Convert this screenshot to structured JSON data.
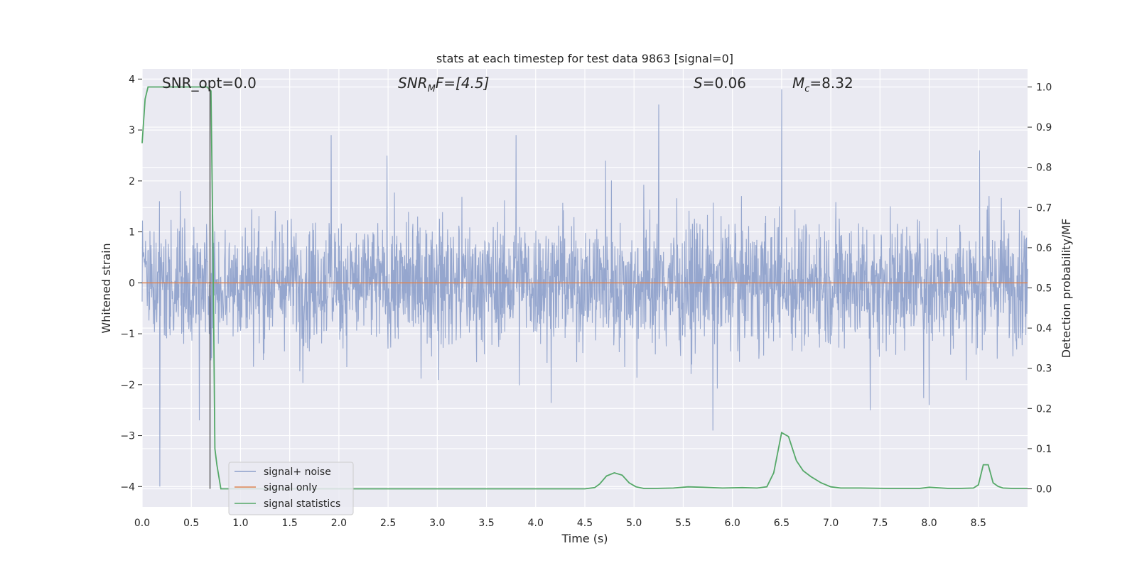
{
  "chart_data": {
    "type": "line",
    "title": "stats at each timestep for test data 9863 [signal=0]",
    "xlabel": "Time (s)",
    "ylabel_left": "Whitened strain",
    "ylabel_right": "Detection probability/MF",
    "xlim": [
      0,
      9.0
    ],
    "ylim_left": [
      -4.4,
      4.2
    ],
    "ylim_right": [
      -0.045,
      1.045
    ],
    "x_ticks": [
      "0.0",
      "0.5",
      "1.0",
      "1.5",
      "2.0",
      "2.5",
      "3.0",
      "3.5",
      "4.0",
      "4.5",
      "5.0",
      "5.5",
      "6.0",
      "6.5",
      "7.0",
      "7.5",
      "8.0",
      "8.5"
    ],
    "y_left_ticks": [
      "4",
      "3",
      "2",
      "1",
      "0",
      "−1",
      "−2",
      "−3",
      "−4"
    ],
    "y_right_ticks": [
      "1.0",
      "0.9",
      "0.8",
      "0.7",
      "0.6",
      "0.5",
      "0.4",
      "0.3",
      "0.2",
      "0.1",
      "0.0"
    ],
    "grid": true,
    "legend_placement": "lower-left",
    "annotations": {
      "snr_opt": "SNR_opt=0.0",
      "snr_mf_label": "SNR",
      "snr_mf_sub": "M",
      "snr_mf_rest": "F=[4.5]",
      "s_label": "S",
      "s_value": "=0.06",
      "mc_label": "M",
      "mc_sub": "c",
      "mc_value": "=8.32"
    },
    "vertical_marker_x": 0.69,
    "series": [
      {
        "name": "signal+ noise",
        "axis": "left",
        "color": "#8c9fca",
        "style": "dense noise, amplitude mostly within ±2, peaks to ~3.8",
        "notable_peaks": [
          {
            "x": 0.18,
            "y": -4.0
          },
          {
            "x": 0.58,
            "y": -2.7
          },
          {
            "x": 1.92,
            "y": 2.9
          },
          {
            "x": 3.8,
            "y": 2.9
          },
          {
            "x": 5.25,
            "y": 3.5
          },
          {
            "x": 5.8,
            "y": -2.9
          },
          {
            "x": 6.5,
            "y": 3.8
          },
          {
            "x": 7.4,
            "y": -2.5
          },
          {
            "x": 8.0,
            "y": -2.4
          }
        ]
      },
      {
        "name": "signal only",
        "axis": "left",
        "color": "#dd8452",
        "x": [
          0,
          9.0
        ],
        "y": [
          0,
          0
        ]
      },
      {
        "name": "signal statistics",
        "axis": "right",
        "color": "#55a868",
        "x": [
          0.0,
          0.03,
          0.06,
          0.1,
          0.15,
          0.2,
          0.3,
          0.4,
          0.5,
          0.6,
          0.66,
          0.68,
          0.7,
          0.72,
          0.74,
          0.76,
          0.8,
          0.9,
          1.0,
          2.0,
          3.0,
          4.0,
          4.5,
          4.6,
          4.65,
          4.72,
          4.8,
          4.88,
          4.95,
          5.02,
          5.1,
          5.2,
          5.4,
          5.55,
          5.7,
          5.9,
          6.1,
          6.25,
          6.35,
          6.42,
          6.5,
          6.57,
          6.65,
          6.72,
          6.8,
          6.9,
          7.0,
          7.1,
          7.3,
          7.6,
          7.9,
          8.0,
          8.2,
          8.3,
          8.45,
          8.5,
          8.55,
          8.6,
          8.65,
          8.7,
          8.75,
          8.85,
          9.0
        ],
        "y": [
          0.86,
          0.97,
          1.0,
          1.0,
          1.0,
          1.0,
          1.0,
          1.0,
          1.0,
          1.0,
          1.0,
          0.995,
          0.99,
          0.6,
          0.1,
          0.06,
          0.0,
          0.0,
          0.0,
          0.0,
          0.0,
          0.0,
          0.0,
          0.003,
          0.012,
          0.032,
          0.04,
          0.034,
          0.015,
          0.005,
          0.001,
          0.001,
          0.002,
          0.005,
          0.004,
          0.002,
          0.003,
          0.002,
          0.005,
          0.04,
          0.14,
          0.13,
          0.07,
          0.045,
          0.03,
          0.015,
          0.005,
          0.002,
          0.002,
          0.001,
          0.001,
          0.004,
          0.001,
          0.001,
          0.002,
          0.01,
          0.06,
          0.06,
          0.015,
          0.006,
          0.002,
          0.001,
          0.001
        ]
      }
    ]
  }
}
